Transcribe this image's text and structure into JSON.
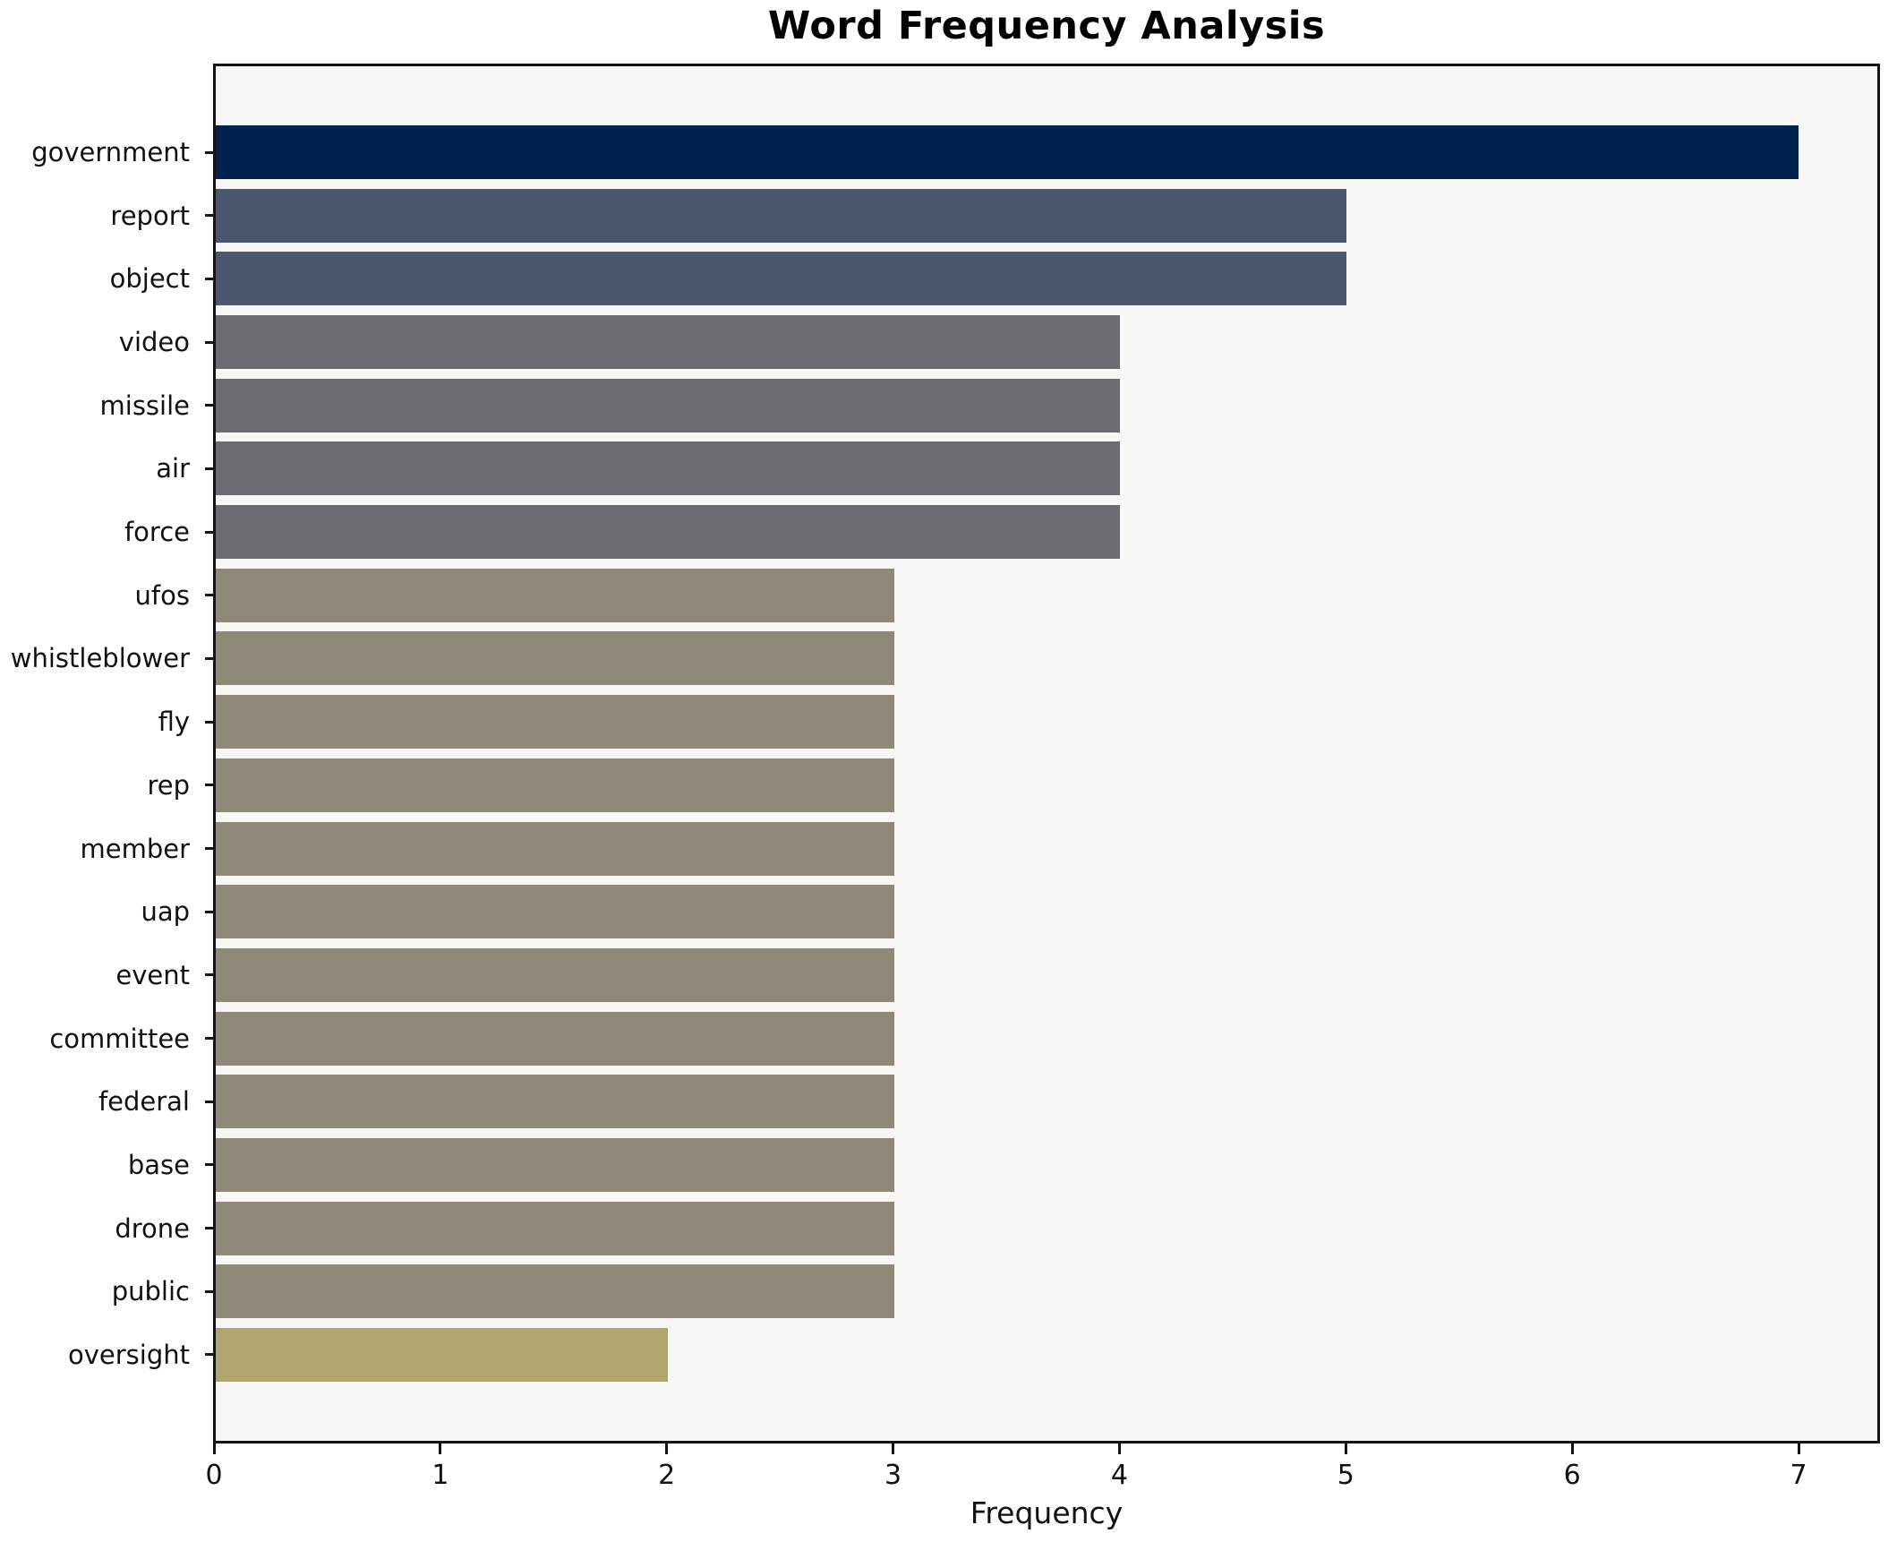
{
  "chart_data": {
    "type": "bar",
    "orientation": "horizontal",
    "title": "Word Frequency Analysis",
    "xlabel": "Frequency",
    "ylabel": "",
    "categories": [
      "government",
      "report",
      "object",
      "video",
      "missile",
      "air",
      "force",
      "ufos",
      "whistleblower",
      "fly",
      "rep",
      "member",
      "uap",
      "event",
      "committee",
      "federal",
      "base",
      "drone",
      "public",
      "oversight"
    ],
    "values": [
      7,
      5,
      5,
      4,
      4,
      4,
      4,
      3,
      3,
      3,
      3,
      3,
      3,
      3,
      3,
      3,
      3,
      3,
      3,
      2
    ],
    "xlim": [
      0,
      7.35
    ],
    "xticks": [
      0,
      1,
      2,
      3,
      4,
      5,
      6,
      7
    ],
    "grid": false,
    "legend": false,
    "bar_colors_by_value": {
      "7": "#00224e",
      "5": "#4c566e",
      "4": "#6b6d71",
      "3": "#8e8979",
      "2": "#b0a66d"
    },
    "colors": {
      "plot_background": "#f7f7f5",
      "figure_background": "#ffffff",
      "spine": "#141414",
      "text": "#111111"
    }
  }
}
